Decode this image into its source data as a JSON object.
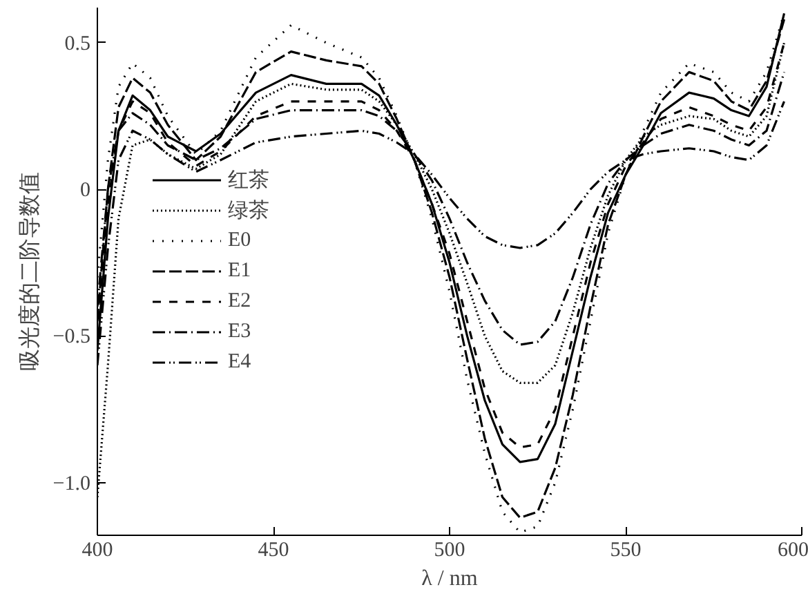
{
  "chart_data": {
    "type": "line",
    "xlabel": "λ / nm",
    "ylabel": "吸光度的二阶导数值",
    "x": [
      400,
      403,
      406,
      410,
      415,
      420,
      428,
      435,
      445,
      455,
      465,
      475,
      480,
      485,
      490,
      495,
      500,
      505,
      510,
      515,
      520,
      525,
      530,
      535,
      540,
      545,
      550,
      555,
      560,
      568,
      575,
      580,
      585,
      590,
      595
    ],
    "xlim": [
      400,
      600
    ],
    "xticks": [
      400,
      450,
      500,
      550,
      600
    ],
    "ylim": [
      -1.18,
      0.62
    ],
    "yticks": [
      {
        "value": 0.5,
        "label": "0.5"
      },
      {
        "value": 0,
        "label": "0"
      },
      {
        "value": -0.5,
        "label": "−0.5"
      },
      {
        "value": -1.0,
        "label": "−1.0"
      }
    ],
    "grid": false,
    "legend": "left",
    "series": [
      {
        "name": "红茶",
        "color": "#000000",
        "line_style": "solid",
        "values": [
          -0.55,
          -0.1,
          0.2,
          0.32,
          0.27,
          0.18,
          0.13,
          0.19,
          0.33,
          0.39,
          0.36,
          0.36,
          0.32,
          0.22,
          0.1,
          -0.05,
          -0.25,
          -0.5,
          -0.72,
          -0.87,
          -0.93,
          -0.92,
          -0.8,
          -0.55,
          -0.3,
          -0.08,
          0.05,
          0.15,
          0.26,
          0.33,
          0.31,
          0.27,
          0.25,
          0.35,
          0.6
        ]
      },
      {
        "name": "绿茶",
        "color": "#000000",
        "line_style": "dotted",
        "values": [
          -1.05,
          -0.6,
          -0.1,
          0.15,
          0.17,
          0.12,
          0.07,
          0.12,
          0.3,
          0.36,
          0.34,
          0.34,
          0.3,
          0.22,
          0.12,
          0.0,
          -0.15,
          -0.32,
          -0.5,
          -0.62,
          -0.66,
          -0.66,
          -0.6,
          -0.42,
          -0.2,
          -0.02,
          0.1,
          0.18,
          0.22,
          0.25,
          0.24,
          0.2,
          0.18,
          0.25,
          0.5
        ]
      },
      {
        "name": "E0",
        "color": "#000000",
        "line_style": "loosedotted",
        "values": [
          -0.3,
          0.1,
          0.35,
          0.43,
          0.38,
          0.25,
          0.12,
          0.2,
          0.45,
          0.56,
          0.5,
          0.45,
          0.38,
          0.25,
          0.1,
          -0.1,
          -0.35,
          -0.65,
          -0.9,
          -1.1,
          -1.17,
          -1.15,
          -1.0,
          -0.75,
          -0.45,
          -0.15,
          0.05,
          0.2,
          0.33,
          0.43,
          0.4,
          0.33,
          0.3,
          0.4,
          0.6
        ]
      },
      {
        "name": "E1",
        "color": "#000000",
        "line_style": "dashed",
        "values": [
          -0.45,
          0.0,
          0.28,
          0.38,
          0.33,
          0.22,
          0.1,
          0.18,
          0.4,
          0.47,
          0.44,
          0.42,
          0.36,
          0.24,
          0.1,
          -0.08,
          -0.3,
          -0.58,
          -0.85,
          -1.05,
          -1.12,
          -1.1,
          -0.95,
          -0.7,
          -0.4,
          -0.12,
          0.05,
          0.18,
          0.3,
          0.4,
          0.37,
          0.3,
          0.27,
          0.37,
          0.58
        ]
      },
      {
        "name": "E2",
        "color": "#000000",
        "line_style": "loosedashed",
        "values": [
          -0.5,
          -0.05,
          0.2,
          0.3,
          0.26,
          0.16,
          0.08,
          0.13,
          0.25,
          0.3,
          0.3,
          0.3,
          0.27,
          0.2,
          0.1,
          -0.05,
          -0.22,
          -0.45,
          -0.68,
          -0.83,
          -0.88,
          -0.87,
          -0.75,
          -0.5,
          -0.25,
          -0.05,
          0.08,
          0.16,
          0.24,
          0.28,
          0.25,
          0.22,
          0.2,
          0.28,
          0.5
        ]
      },
      {
        "name": "E3",
        "color": "#000000",
        "line_style": "dashdot",
        "values": [
          -0.4,
          0.0,
          0.2,
          0.26,
          0.22,
          0.15,
          0.1,
          0.14,
          0.24,
          0.27,
          0.27,
          0.27,
          0.25,
          0.2,
          0.12,
          0.03,
          -0.1,
          -0.25,
          -0.38,
          -0.48,
          -0.53,
          -0.52,
          -0.45,
          -0.3,
          -0.12,
          0.02,
          0.1,
          0.15,
          0.19,
          0.22,
          0.2,
          0.17,
          0.15,
          0.2,
          0.4
        ]
      },
      {
        "name": "E4",
        "color": "#000000",
        "line_style": "dashdotdot",
        "values": [
          -0.6,
          -0.2,
          0.1,
          0.2,
          0.17,
          0.12,
          0.06,
          0.1,
          0.16,
          0.18,
          0.19,
          0.2,
          0.19,
          0.16,
          0.12,
          0.05,
          -0.03,
          -0.1,
          -0.16,
          -0.19,
          -0.2,
          -0.19,
          -0.15,
          -0.08,
          0.0,
          0.06,
          0.1,
          0.12,
          0.13,
          0.14,
          0.13,
          0.11,
          0.1,
          0.15,
          0.3
        ]
      }
    ]
  }
}
